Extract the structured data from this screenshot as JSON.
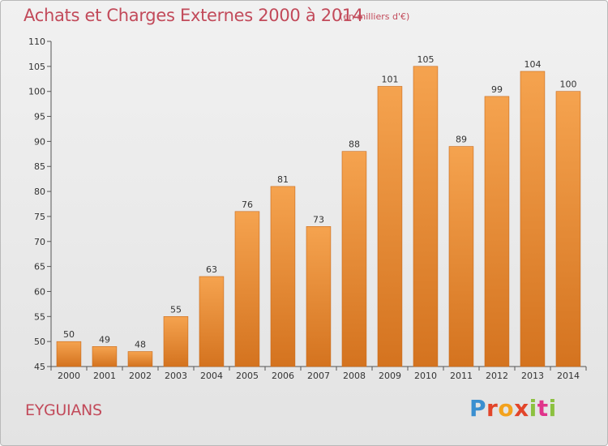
{
  "header": {
    "title": "Achats et Charges Externes 2000 à 2014",
    "subtitle": "(en milliers d'€)"
  },
  "footer": {
    "town": "EYGUIANS",
    "logo": "Proxiti"
  },
  "colors": {
    "title": "#c24a5a",
    "bar_top": "#f5a34f",
    "bar_bottom": "#d4731f",
    "bar_edge": "#c9691a"
  },
  "chart_data": {
    "type": "bar",
    "categories": [
      "2000",
      "2001",
      "2002",
      "2003",
      "2004",
      "2005",
      "2006",
      "2007",
      "2008",
      "2009",
      "2010",
      "2011",
      "2012",
      "2013",
      "2014"
    ],
    "values": [
      50,
      49,
      48,
      55,
      63,
      76,
      81,
      73,
      88,
      101,
      105,
      89,
      99,
      104,
      100
    ],
    "data_labels": [
      "50",
      "49",
      "48",
      "55",
      "63",
      "76",
      "81",
      "73",
      "88",
      "101",
      "105",
      "89",
      "99",
      "104",
      "100"
    ],
    "y_ticks": [
      45,
      50,
      55,
      60,
      65,
      70,
      75,
      80,
      85,
      90,
      95,
      100,
      105,
      110
    ],
    "ylim": [
      45,
      110
    ],
    "grid": false,
    "legend": "none"
  }
}
